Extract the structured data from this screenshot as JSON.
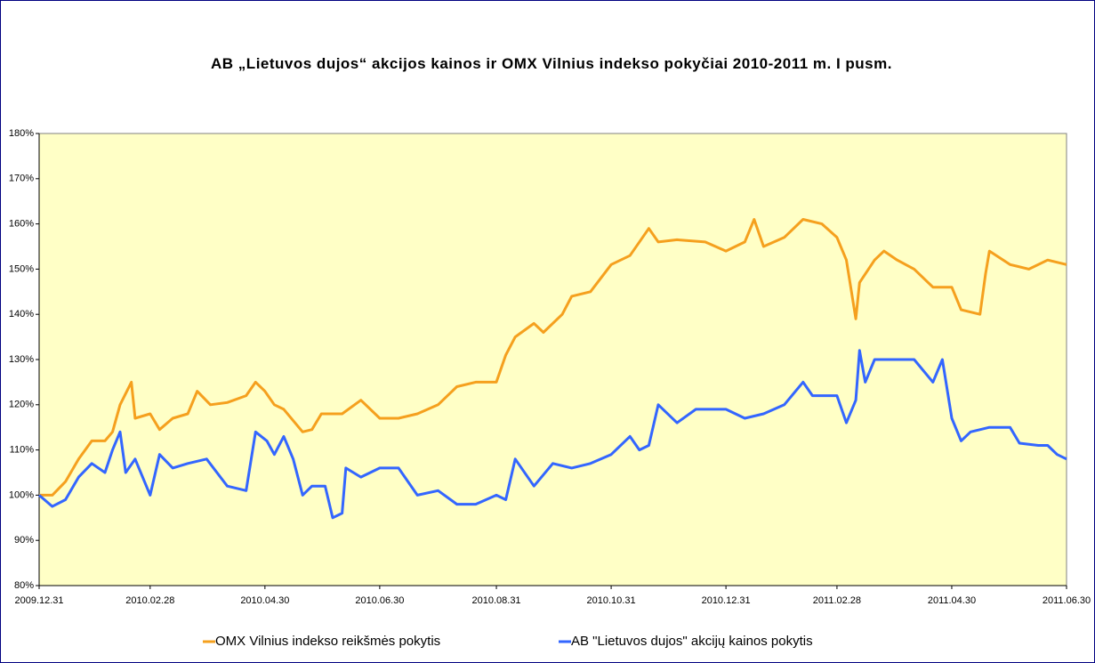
{
  "chart_data": {
    "type": "line",
    "title": "AB „Lietuvos dujos“ akcijos kainos ir OMX Vilnius  indekso pokyčiai 2010-2011 m. I pusm.",
    "xlim": [
      "2009.12.31",
      "2011.06.30"
    ],
    "xticks": [
      "2009.12.31",
      "2010.02.28",
      "2010.04.30",
      "2010.06.30",
      "2010.08.31",
      "2010.10.31",
      "2010.12.31",
      "2011.02.28",
      "2011.04.30",
      "2011.06.30"
    ],
    "ylim": [
      80,
      180
    ],
    "yticks": [
      {
        "value": 80,
        "label": "80%"
      },
      {
        "value": 90,
        "label": "90%"
      },
      {
        "value": 100,
        "label": "100%"
      },
      {
        "value": 110,
        "label": "110%"
      },
      {
        "value": 120,
        "label": "120%"
      },
      {
        "value": 130,
        "label": "130%"
      },
      {
        "value": 140,
        "label": "140%"
      },
      {
        "value": 150,
        "label": "150%"
      },
      {
        "value": 160,
        "label": "160%"
      },
      {
        "value": 170,
        "label": "170%"
      },
      {
        "value": 180,
        "label": "180%"
      }
    ],
    "legend": "bottom",
    "series": [
      {
        "name": "OMX Vilnius indekso reikšmės pokytis",
        "color": "#f5a01e",
        "x": [
          "2009.12.31",
          "2010.01.07",
          "2010.01.14",
          "2010.01.21",
          "2010.01.28",
          "2010.02.04",
          "2010.02.08",
          "2010.02.12",
          "2010.02.18",
          "2010.02.20",
          "2010.02.28",
          "2010.03.05",
          "2010.03.12",
          "2010.03.20",
          "2010.03.25",
          "2010.04.01",
          "2010.04.10",
          "2010.04.20",
          "2010.04.25",
          "2010.04.30",
          "2010.05.05",
          "2010.05.10",
          "2010.05.20",
          "2010.05.25",
          "2010.05.30",
          "2010.06.10",
          "2010.06.20",
          "2010.06.30",
          "2010.07.10",
          "2010.07.20",
          "2010.07.31",
          "2010.08.10",
          "2010.08.20",
          "2010.08.31",
          "2010.09.05",
          "2010.09.10",
          "2010.09.20",
          "2010.09.25",
          "2010.10.05",
          "2010.10.10",
          "2010.10.20",
          "2010.10.31",
          "2010.11.10",
          "2010.11.20",
          "2010.11.25",
          "2010.12.05",
          "2010.12.20",
          "2010.12.31",
          "2011.01.10",
          "2011.01.15",
          "2011.01.20",
          "2011.01.31",
          "2011.02.10",
          "2011.02.20",
          "2011.02.28",
          "2011.03.05",
          "2011.03.10",
          "2011.03.12",
          "2011.03.20",
          "2011.03.25",
          "2011.04.01",
          "2011.04.10",
          "2011.04.20",
          "2011.04.30",
          "2011.05.05",
          "2011.05.15",
          "2011.05.18",
          "2011.05.20",
          "2011.05.31",
          "2011.06.10",
          "2011.06.20",
          "2011.06.30"
        ],
        "values": [
          100,
          100,
          103,
          108,
          112,
          112,
          114,
          120,
          125,
          117,
          118,
          114.5,
          117,
          118,
          123,
          120,
          120.5,
          122,
          125,
          123,
          120,
          119,
          114,
          114.5,
          118,
          118,
          121,
          117,
          117,
          118,
          120,
          124,
          125,
          125,
          131,
          135,
          138,
          136,
          140,
          144,
          145,
          151,
          153,
          159,
          156,
          156.5,
          156,
          154,
          156,
          161,
          155,
          157,
          161,
          160,
          157,
          152,
          139,
          147,
          152,
          154,
          152,
          150,
          146,
          146,
          141,
          140,
          149,
          154,
          151,
          150,
          152,
          151
        ]
      },
      {
        "name": "AB \"Lietuvos dujos\" akcijų kainos pokytis",
        "color": "#3366ff",
        "x": [
          "2009.12.31",
          "2010.01.07",
          "2010.01.14",
          "2010.01.21",
          "2010.01.28",
          "2010.02.04",
          "2010.02.08",
          "2010.02.12",
          "2010.02.15",
          "2010.02.20",
          "2010.02.28",
          "2010.03.05",
          "2010.03.12",
          "2010.03.20",
          "2010.03.30",
          "2010.04.10",
          "2010.04.20",
          "2010.04.25",
          "2010.05.01",
          "2010.05.05",
          "2010.05.10",
          "2010.05.15",
          "2010.05.20",
          "2010.05.25",
          "2010.06.01",
          "2010.06.05",
          "2010.06.10",
          "2010.06.12",
          "2010.06.20",
          "2010.06.30",
          "2010.07.10",
          "2010.07.20",
          "2010.07.31",
          "2010.08.10",
          "2010.08.20",
          "2010.08.31",
          "2010.09.05",
          "2010.09.10",
          "2010.09.20",
          "2010.09.30",
          "2010.10.10",
          "2010.10.20",
          "2010.10.31",
          "2010.11.10",
          "2010.11.15",
          "2010.11.20",
          "2010.11.25",
          "2010.12.05",
          "2010.12.15",
          "2010.12.31",
          "2011.01.10",
          "2011.01.20",
          "2011.01.31",
          "2011.02.10",
          "2011.02.15",
          "2011.02.28",
          "2011.03.05",
          "2011.03.10",
          "2011.03.12",
          "2011.03.15",
          "2011.03.20",
          "2011.03.31",
          "2011.04.10",
          "2011.04.20",
          "2011.04.25",
          "2011.04.30",
          "2011.05.05",
          "2011.05.10",
          "2011.05.20",
          "2011.05.31",
          "2011.06.05",
          "2011.06.15",
          "2011.06.20",
          "2011.06.25",
          "2011.06.30"
        ],
        "values": [
          100,
          97.5,
          99,
          104,
          107,
          105,
          110,
          114,
          105,
          108,
          100,
          109,
          106,
          107,
          108,
          102,
          101,
          114,
          112,
          109,
          113,
          108,
          100,
          102,
          102,
          95,
          96,
          106,
          104,
          106,
          106,
          100,
          101,
          98,
          98,
          100,
          99,
          108,
          102,
          107,
          106,
          107,
          109,
          113,
          110,
          111,
          120,
          116,
          119,
          119,
          117,
          118,
          120,
          125,
          122,
          122,
          116,
          121,
          132,
          125,
          130,
          130,
          130,
          125,
          130,
          117,
          112,
          114,
          115,
          115,
          111.5,
          111,
          111,
          109,
          108
        ]
      }
    ]
  }
}
